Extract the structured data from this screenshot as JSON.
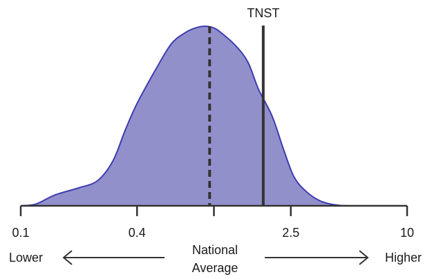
{
  "chart_data": {
    "type": "area",
    "x_scale": "log",
    "xlim": [
      0.1,
      10
    ],
    "tick_labels": [
      "0.1",
      "0.4",
      "2.5",
      "10"
    ],
    "tick_values": [
      0.1,
      0.4,
      2.5,
      10
    ],
    "minor_tick_values": [
      1.0
    ],
    "density": {
      "x": [
        0.1,
        0.12,
        0.15,
        0.2,
        0.25,
        0.3,
        0.35,
        0.4,
        0.5,
        0.6,
        0.7,
        0.8,
        0.9,
        1.0,
        1.1,
        1.3,
        1.5,
        1.7,
        2.0,
        2.3,
        2.6,
        3.0,
        3.5,
        4.0,
        4.5,
        5.0
      ],
      "y": [
        0.0,
        0.01,
        0.06,
        0.1,
        0.14,
        0.25,
        0.43,
        0.57,
        0.76,
        0.9,
        0.96,
        0.99,
        1.0,
        0.99,
        0.96,
        0.89,
        0.8,
        0.65,
        0.5,
        0.31,
        0.16,
        0.08,
        0.03,
        0.01,
        0.002,
        0.0
      ],
      "fill_color": "#9290cb",
      "stroke_color": "#3d3bb0"
    },
    "reference_lines": [
      {
        "name": "National Average",
        "x": 0.95,
        "style": "dashed",
        "color": "#333333"
      },
      {
        "name": "TNST",
        "x": 1.8,
        "style": "solid",
        "color": "#333333"
      }
    ],
    "axis_color": "#333333"
  },
  "labels": {
    "tnst": "TNST",
    "lower": "Lower",
    "higher": "Higher",
    "national_line1": "National",
    "national_line2": "Average"
  }
}
